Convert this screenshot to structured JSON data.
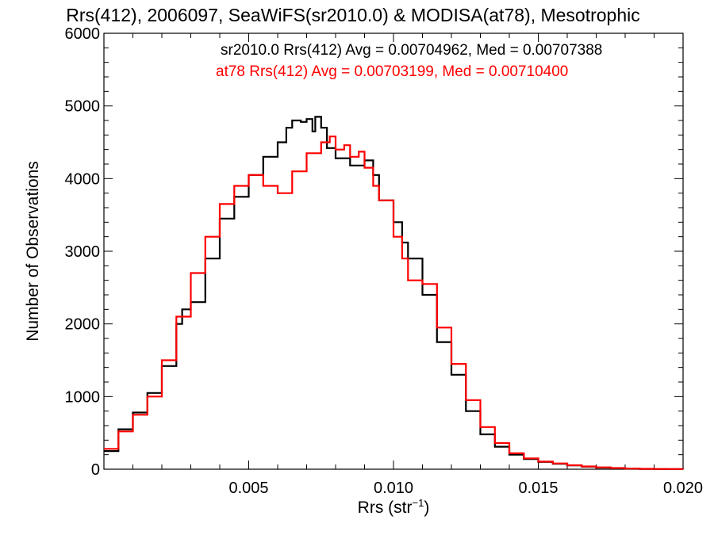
{
  "chart_data": {
    "type": "line",
    "title": "Rrs(412), 2006097, SeaWiFS(sr2010.0) & MODISA(at78), Mesotrophic",
    "xlabel": {
      "base": "Rrs (str",
      "sup": "−1",
      "close": ")"
    },
    "ylabel": "Number of Observations",
    "xlim": [
      0.0,
      0.02
    ],
    "ylim": [
      0,
      6000
    ],
    "xticks": [
      {
        "value": 0.005,
        "label": "0.005"
      },
      {
        "value": 0.01,
        "label": "0.010"
      },
      {
        "value": 0.015,
        "label": "0.015"
      },
      {
        "value": 0.02,
        "label": "0.020"
      }
    ],
    "yticks": [
      {
        "value": 0,
        "label": "0"
      },
      {
        "value": 1000,
        "label": "1000"
      },
      {
        "value": 2000,
        "label": "2000"
      },
      {
        "value": 3000,
        "label": "3000"
      },
      {
        "value": 4000,
        "label": "4000"
      },
      {
        "value": 5000,
        "label": "5000"
      },
      {
        "value": 6000,
        "label": "6000"
      }
    ],
    "grid": false,
    "annotations": [
      {
        "text": "sr2010.0 Rrs(412) Avg = 0.00704962, Med = 0.00707388",
        "color": "#000000"
      },
      {
        "text": "at78 Rrs(412) Avg = 0.00703199, Med = 0.00710400",
        "color": "#ff0000"
      }
    ],
    "series": [
      {
        "color": "#000000",
        "x": [
          0.0,
          0.0005,
          0.001,
          0.0015,
          0.002,
          0.0025,
          0.0027,
          0.003,
          0.0035,
          0.004,
          0.0045,
          0.005,
          0.0055,
          0.006,
          0.0063,
          0.0065,
          0.0068,
          0.007,
          0.0072,
          0.0073,
          0.0075,
          0.0077,
          0.008,
          0.0085,
          0.009,
          0.0093,
          0.0095,
          0.01,
          0.0103,
          0.0105,
          0.011,
          0.0115,
          0.012,
          0.0125,
          0.013,
          0.0135,
          0.014,
          0.0145,
          0.015,
          0.0155,
          0.016,
          0.0165,
          0.017,
          0.0175,
          0.018,
          0.0185,
          0.019,
          0.0195,
          0.02
        ],
        "y": [
          250,
          550,
          780,
          1050,
          1420,
          2000,
          2200,
          2300,
          2900,
          3450,
          3750,
          4050,
          4300,
          4500,
          4700,
          4800,
          4780,
          4820,
          4650,
          4850,
          4700,
          4420,
          4280,
          4180,
          4250,
          4050,
          3700,
          3400,
          3120,
          2900,
          2400,
          1750,
          1300,
          800,
          480,
          310,
          200,
          140,
          100,
          75,
          52,
          35,
          22,
          13,
          7,
          4,
          2,
          1,
          0
        ]
      },
      {
        "color": "#ff0000",
        "x": [
          0.0,
          0.0005,
          0.001,
          0.0015,
          0.002,
          0.0025,
          0.003,
          0.0035,
          0.004,
          0.0045,
          0.005,
          0.0055,
          0.006,
          0.0065,
          0.007,
          0.0075,
          0.0078,
          0.008,
          0.0083,
          0.0085,
          0.0088,
          0.009,
          0.0093,
          0.0095,
          0.01,
          0.0103,
          0.0105,
          0.011,
          0.0115,
          0.012,
          0.0125,
          0.013,
          0.0135,
          0.014,
          0.0145,
          0.015,
          0.0155,
          0.016,
          0.0165,
          0.017,
          0.0175,
          0.018,
          0.0185,
          0.019,
          0.0195,
          0.02
        ],
        "y": [
          280,
          520,
          750,
          1000,
          1500,
          2100,
          2700,
          3200,
          3650,
          3900,
          4050,
          3900,
          3800,
          4100,
          4350,
          4500,
          4580,
          4400,
          4460,
          4300,
          4370,
          4150,
          3900,
          3700,
          3200,
          2900,
          2600,
          2550,
          1950,
          1450,
          950,
          580,
          360,
          220,
          150,
          105,
          80,
          55,
          38,
          25,
          16,
          9,
          5,
          3,
          2,
          1
        ]
      }
    ]
  }
}
